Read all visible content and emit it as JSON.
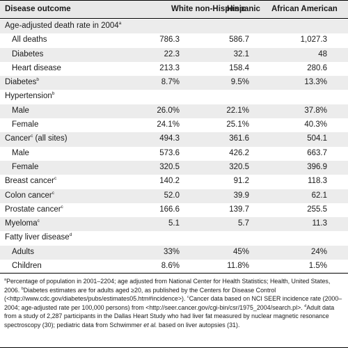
{
  "table": {
    "columns": [
      "Disease outcome",
      "White non-Hispanic",
      "Hispanic",
      "African American"
    ],
    "rows": [
      {
        "label": "Age-adjusted death rate in 2004",
        "sup": "a",
        "indent": false,
        "alt": true,
        "values": [
          "",
          "",
          ""
        ]
      },
      {
        "label": "All deaths",
        "sup": "",
        "indent": true,
        "alt": false,
        "values": [
          "786.3",
          "586.7",
          "1,027.3"
        ]
      },
      {
        "label": "Diabetes",
        "sup": "",
        "indent": true,
        "alt": true,
        "values": [
          "22.3",
          "32.1",
          "48"
        ]
      },
      {
        "label": "Heart disease",
        "sup": "",
        "indent": true,
        "alt": false,
        "values": [
          "213.3",
          "158.4",
          "280.6"
        ]
      },
      {
        "label": "Diabetes",
        "sup": "b",
        "indent": false,
        "alt": true,
        "values": [
          "8.7%",
          "9.5%",
          "13.3%"
        ]
      },
      {
        "label": "Hypertension",
        "sup": "b",
        "indent": false,
        "alt": false,
        "values": [
          "",
          "",
          ""
        ]
      },
      {
        "label": "Male",
        "sup": "",
        "indent": true,
        "alt": true,
        "values": [
          "26.0%",
          "22.1%",
          "37.8%"
        ]
      },
      {
        "label": "Female",
        "sup": "",
        "indent": true,
        "alt": false,
        "values": [
          "24.1%",
          "25.1%",
          "40.3%"
        ]
      },
      {
        "label": "Cancer",
        "sup": "c",
        "suffix": " (all sites)",
        "indent": false,
        "alt": true,
        "values": [
          "494.3",
          "361.6",
          "504.1"
        ]
      },
      {
        "label": "Male",
        "sup": "",
        "indent": true,
        "alt": false,
        "values": [
          "573.6",
          "426.2",
          "663.7"
        ]
      },
      {
        "label": "Female",
        "sup": "",
        "indent": true,
        "alt": true,
        "values": [
          "320.5",
          "320.5",
          "396.9"
        ]
      },
      {
        "label": "Breast cancer",
        "sup": "c",
        "indent": false,
        "alt": false,
        "values": [
          "140.2",
          "91.2",
          "118.3"
        ]
      },
      {
        "label": "Colon cancer",
        "sup": "c",
        "indent": false,
        "alt": true,
        "values": [
          "52.0",
          "39.9",
          "62.1"
        ]
      },
      {
        "label": "Prostate cancer",
        "sup": "c",
        "indent": false,
        "alt": false,
        "values": [
          "166.6",
          "139.7",
          "255.5"
        ]
      },
      {
        "label": "Myeloma",
        "sup": "c",
        "indent": false,
        "alt": true,
        "values": [
          "5.1",
          "5.7",
          "11.3"
        ]
      },
      {
        "label": "Fatty liver disease",
        "sup": "d",
        "indent": false,
        "alt": false,
        "values": [
          "",
          "",
          ""
        ]
      },
      {
        "label": "Adults",
        "sup": "",
        "indent": true,
        "alt": true,
        "values": [
          "33%",
          "45%",
          "24%"
        ]
      },
      {
        "label": "Children",
        "sup": "",
        "indent": true,
        "alt": false,
        "values": [
          "8.6%",
          "11.8%",
          "1.5%"
        ]
      }
    ]
  },
  "footnote": {
    "a_mark": "a",
    "a_text": "Percentage of population in 2001–2204; age adjusted from National Center for Health Statistics; Health, United States, 2006. ",
    "b_mark": "b",
    "b_text": "Diabetes estimates are for adults aged ≥20, as published by the Centers for Disease Control (<http://www.cdc.gov/diabetes/pubs/estimates05.htm#incidence>). ",
    "c_mark": "c",
    "c_text": "Cancer data based on NCI SEER incidence rate (2000–2004; age-adjusted rate per 100,000 persons) from <http://seer.cancer.gov/cgi-bin/csr/1975_2004/search.pl>. ",
    "d_mark": "d",
    "d_text": "Adult data from a study of 2,287 participants in the Dallas Heart Study who had liver fat measured by nuclear magnetic resonance spectroscopy (30); pediatric data from Schwimmer ",
    "d_italic": "et al.",
    "d_end": " based on liver autopsies (31)."
  }
}
